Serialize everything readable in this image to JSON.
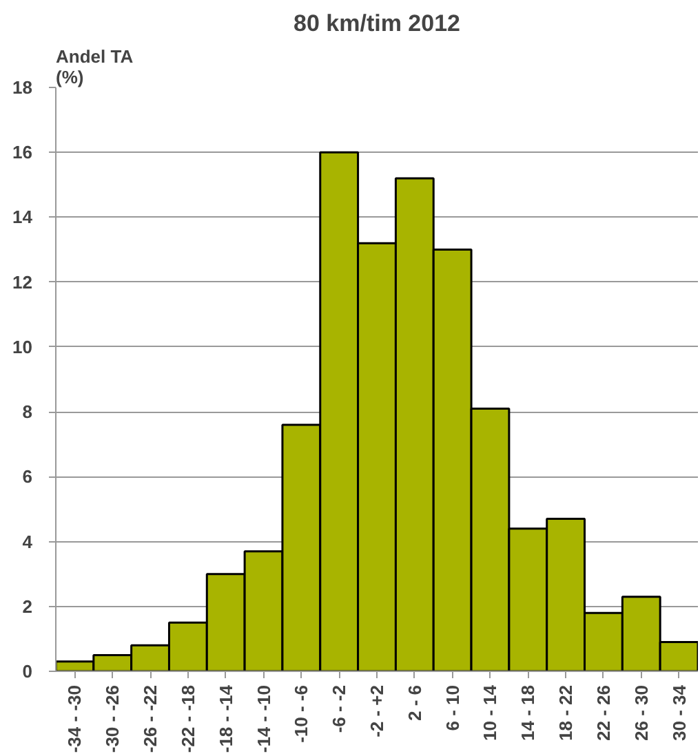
{
  "chart_data": {
    "type": "bar",
    "title": "80 km/tim 2012",
    "ylabel": "Andel TA\n(%)",
    "categories": [
      "-34 - -30",
      "-30 - -26",
      "-26 - -22",
      "-22 - -18",
      "-18 - -14",
      "-14 - -10",
      "-10 - -6",
      "-6 - -2",
      "-2 - +2",
      "2 - 6",
      "6 - 10",
      "10 - 14",
      "14 - 18",
      "18 - 22",
      "22 - 26",
      "26 - 30",
      "30 - 34"
    ],
    "values": [
      0.3,
      0.5,
      0.8,
      1.5,
      3.0,
      3.7,
      7.6,
      16.0,
      13.2,
      15.2,
      13.0,
      8.1,
      4.4,
      4.7,
      1.8,
      2.3,
      0.9
    ],
    "color": "#a8b400",
    "ylim": [
      0,
      18
    ],
    "yticks": [
      0,
      2,
      4,
      6,
      8,
      10,
      12,
      14,
      16,
      18
    ],
    "grid": "y"
  }
}
